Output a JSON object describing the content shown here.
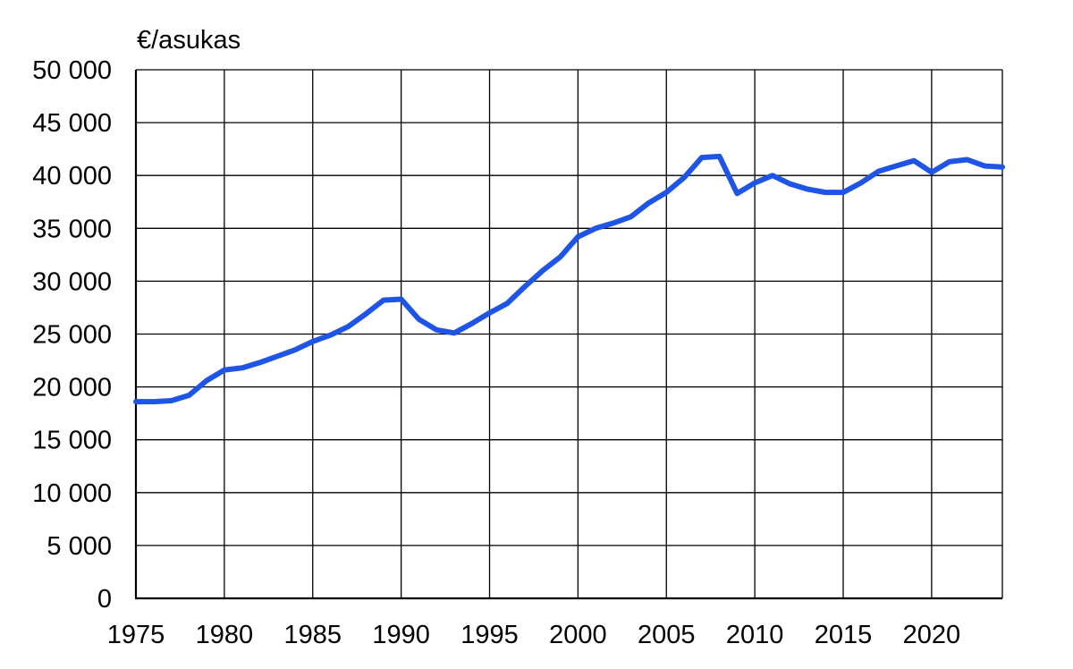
{
  "chart_data": {
    "type": "line",
    "title": "",
    "ylabel": "€/asukas",
    "xlabel": "",
    "xlim": [
      1975,
      2024
    ],
    "ylim": [
      0,
      50000
    ],
    "grid": true,
    "legend": "none",
    "x_tick_labels": [
      "1975",
      "1980",
      "1985",
      "1990",
      "1995",
      "2000",
      "2005",
      "2010",
      "2015",
      "2020"
    ],
    "x_tick_values": [
      1975,
      1980,
      1985,
      1990,
      1995,
      2000,
      2005,
      2010,
      2015,
      2020
    ],
    "y_tick_labels": [
      "0",
      "5 000",
      "10 000",
      "15 000",
      "20 000",
      "25 000",
      "30 000",
      "35 000",
      "40 000",
      "45 000",
      "50 000"
    ],
    "y_tick_values": [
      0,
      5000,
      10000,
      15000,
      20000,
      25000,
      30000,
      35000,
      40000,
      45000,
      50000
    ],
    "series": [
      {
        "color": "#1f55e6",
        "x": [
          1975,
          1976,
          1977,
          1978,
          1979,
          1980,
          1981,
          1982,
          1983,
          1984,
          1985,
          1986,
          1987,
          1988,
          1989,
          1990,
          1991,
          1992,
          1993,
          1994,
          1995,
          1996,
          1997,
          1998,
          1999,
          2000,
          2001,
          2002,
          2003,
          2004,
          2005,
          2006,
          2007,
          2008,
          2009,
          2010,
          2011,
          2012,
          2013,
          2014,
          2015,
          2016,
          2017,
          2018,
          2019,
          2020,
          2021,
          2022,
          2023,
          2024
        ],
        "values": [
          18600,
          18600,
          18700,
          19200,
          20600,
          21600,
          21800,
          22300,
          22900,
          23500,
          24300,
          24900,
          25700,
          26900,
          28200,
          28300,
          26400,
          25400,
          25100,
          26000,
          27000,
          27900,
          29500,
          31000,
          32300,
          34200,
          35000,
          35500,
          36100,
          37400,
          38400,
          39800,
          41700,
          41800,
          38300,
          39300,
          40000,
          39200,
          38700,
          38400,
          38400,
          39300,
          40400,
          40900,
          41400,
          40300,
          41300,
          41500,
          40900,
          40800
        ]
      }
    ]
  }
}
